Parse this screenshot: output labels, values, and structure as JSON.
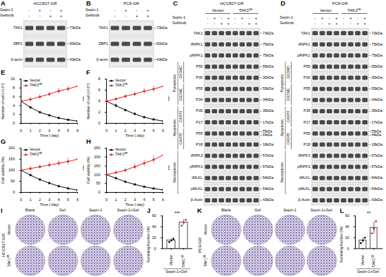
{
  "blots": [
    {
      "panel": "A",
      "cell_line": "HCC827-GR",
      "treatments": [
        {
          "label": "Sepin-1",
          "signs": [
            "-",
            "+",
            "-",
            "+"
          ]
        },
        {
          "label": "Gefitinib",
          "signs": [
            "-",
            "-",
            "+",
            "+"
          ]
        }
      ],
      "rows": [
        {
          "label": "TAK1",
          "mw": [
            "73kDa"
          ]
        },
        {
          "label": "ZBP1",
          "mw": [
            "60kDa"
          ]
        },
        {
          "label": "β-actin",
          "mw": [
            "43kDa"
          ]
        }
      ]
    },
    {
      "panel": "B",
      "cell_line": "PC9-GR",
      "treatments": [
        {
          "label": "Sepin-1",
          "signs": [
            "-",
            "+",
            "-",
            "+"
          ]
        },
        {
          "label": "Gefitinib",
          "signs": [
            "-",
            "-",
            "+",
            "+"
          ]
        }
      ],
      "rows": [
        {
          "label": "TAK1",
          "mw": [
            "73kDa"
          ]
        },
        {
          "label": "ZBP1",
          "mw": [
            "60kDa"
          ]
        },
        {
          "label": "β-actin",
          "mw": [
            "43kDa"
          ]
        }
      ]
    },
    {
      "panel": "C",
      "cell_line": "HCC827-GR",
      "lane_groups": [
        "Vector",
        "TAK1ᴰᴱ"
      ],
      "treatments": [
        {
          "label": "Sepin-1",
          "signs": [
            "-",
            "+",
            "-",
            "+",
            "-",
            "+",
            "-",
            "+"
          ]
        },
        {
          "label": "Gefitinib",
          "signs": [
            "-",
            "-",
            "+",
            "+",
            "-",
            "-",
            "+",
            "+"
          ]
        }
      ],
      "rows": [
        {
          "label": "TAK1",
          "mw": [
            "73kDa"
          ]
        },
        {
          "label": "tRIPK1",
          "mw": [
            "75kDa"
          ]
        },
        {
          "label": "pRIPK1",
          "mw": [
            "75kDa"
          ]
        },
        {
          "category": "Pyroptosis",
          "protein": "GSDMD",
          "label": "P55",
          "mw": [
            "55kDa"
          ]
        },
        {
          "category": "Pyroptosis",
          "protein": "GSDMD",
          "label": "P30",
          "mw": [
            "30kDa"
          ]
        },
        {
          "category": "Pyroptosis",
          "protein": "GSDME",
          "label": "P55",
          "mw": [
            "55kDa"
          ]
        },
        {
          "category": "Pyroptosis",
          "protein": "GSDME",
          "label": "P34",
          "mw": [
            "34kDa"
          ]
        },
        {
          "category": "Apoptosis",
          "protein": "CASP3",
          "label": "P35",
          "mw": [
            "35kDa"
          ]
        },
        {
          "category": "Apoptosis",
          "protein": "CASP3",
          "label": "P17",
          "mw": [
            "17kDa"
          ]
        },
        {
          "category": "Apoptosis",
          "protein": "CASP8",
          "label": "P55",
          "mw": [
            "55kDa",
            "44kDa"
          ]
        },
        {
          "category": "Apoptosis",
          "protein": "CASP8",
          "label": "P18",
          "mw": [
            "18kDa"
          ]
        },
        {
          "category": "Necroptosis",
          "label": "tRIPK3",
          "mw": [
            "57kDa"
          ]
        },
        {
          "category": "Necroptosis",
          "label": "pRIPK3",
          "mw": [
            "57kDa"
          ]
        },
        {
          "category": "Necroptosis",
          "label": "tMLKL",
          "mw": [
            "54kDa"
          ]
        },
        {
          "category": "Necroptosis",
          "label": "pMLKL",
          "mw": [
            "54kDa"
          ]
        },
        {
          "label": "β-Actin",
          "mw": [
            "43kDa"
          ]
        }
      ]
    },
    {
      "panel": "D",
      "cell_line": "PC9-GR",
      "lane_groups": [
        "Vector",
        "TAK1ᴰᴱ"
      ],
      "treatments": [
        {
          "label": "Sepin-1",
          "signs": [
            "-",
            "+",
            "-",
            "+",
            "-",
            "+",
            "-",
            "+"
          ]
        },
        {
          "label": "Gefitinib",
          "signs": [
            "-",
            "-",
            "+",
            "+",
            "-",
            "-",
            "+",
            "+"
          ]
        }
      ],
      "rows": [
        {
          "label": "TAK1",
          "mw": [
            "73kDa"
          ]
        },
        {
          "label": "tRIPK1",
          "mw": [
            "75kDa"
          ]
        },
        {
          "label": "pRIPK1",
          "mw": [
            "75kDa"
          ]
        },
        {
          "category": "Pyroptosis",
          "protein": "GSDMD",
          "label": "P55",
          "mw": [
            "55kDa"
          ]
        },
        {
          "category": "Pyroptosis",
          "protein": "GSDMD",
          "label": "P30",
          "mw": [
            "30kDa"
          ]
        },
        {
          "category": "Pyroptosis",
          "protein": "GSDME",
          "label": "P55",
          "mw": [
            "55kDa"
          ]
        },
        {
          "category": "Pyroptosis",
          "protein": "GSDME",
          "label": "P34",
          "mw": [
            "34kDa"
          ]
        },
        {
          "category": "Apoptosis",
          "protein": "CASP3",
          "label": "P35",
          "mw": [
            "35kDa"
          ]
        },
        {
          "category": "Apoptosis",
          "protein": "CASP3",
          "label": "P17",
          "mw": [
            "17kDa"
          ]
        },
        {
          "category": "Apoptosis",
          "protein": "CASP8",
          "label": "P55",
          "mw": [
            "55kDa",
            "44kDa"
          ]
        },
        {
          "category": "Apoptosis",
          "protein": "CASP8",
          "label": "P18",
          "mw": [
            "18kDa"
          ]
        },
        {
          "category": "Necroptosis",
          "label": "tRIPK3",
          "mw": [
            "57kDa"
          ]
        },
        {
          "category": "Necroptosis",
          "label": "pRIPK3",
          "mw": [
            "57kDa"
          ]
        },
        {
          "category": "Necroptosis",
          "label": "tMLKL",
          "mw": [
            "54kDa"
          ]
        },
        {
          "category": "Necroptosis",
          "label": "pMLKL",
          "mw": [
            "54kDa"
          ]
        },
        {
          "label": "β-Actin",
          "mw": [
            "43kDa"
          ]
        }
      ]
    }
  ],
  "chart_data": [
    {
      "panel": "E",
      "type": "line",
      "x_label": "Time ( day)",
      "y_label": "Number of cell (×10⁴)",
      "x": [
        0,
        1,
        2,
        3,
        4,
        5,
        6
      ],
      "xlim": [
        0,
        6
      ],
      "xticks": [
        0,
        1,
        2,
        3,
        4,
        5,
        6
      ],
      "ylim": [
        0,
        10
      ],
      "yticks": [
        0,
        2,
        4,
        6,
        8,
        10
      ],
      "legend": "top-left",
      "annotations": [
        "***"
      ],
      "series": [
        {
          "name": "Vector",
          "color": "#000000",
          "marker": "square",
          "values": [
            5,
            3.6,
            2.5,
            1.8,
            1.2,
            0.8,
            0.5
          ],
          "errors": [
            0.3,
            0.3,
            0.2,
            0.2,
            0.2,
            0.1,
            0.1
          ]
        },
        {
          "name": "TAK1ᴰᴱ",
          "color": "#e31a1c",
          "marker": "circle",
          "values": [
            5,
            5.4,
            6,
            6.6,
            7.3,
            7.8,
            8.4
          ],
          "errors": [
            0.3,
            0.4,
            0.5,
            0.5,
            0.6,
            0.7,
            0.8
          ]
        }
      ]
    },
    {
      "panel": "F",
      "type": "line",
      "x_label": "Time ( day)",
      "y_label": "Number of cell (×10⁴)",
      "x": [
        0,
        1,
        2,
        3,
        4,
        5,
        6
      ],
      "xlim": [
        0,
        6
      ],
      "xticks": [
        0,
        1,
        2,
        3,
        4,
        5,
        6
      ],
      "ylim": [
        0,
        8
      ],
      "yticks": [
        0,
        2,
        4,
        6,
        8
      ],
      "legend": "top-left",
      "annotations": [
        "***"
      ],
      "series": [
        {
          "name": "Vector",
          "color": "#000000",
          "marker": "square",
          "values": [
            4,
            3.2,
            2.4,
            1.7,
            1.1,
            0.7,
            0.4
          ],
          "errors": [
            0.3,
            0.3,
            0.2,
            0.2,
            0.2,
            0.1,
            0.1
          ]
        },
        {
          "name": "TAK1ᴰᴱ",
          "color": "#e31a1c",
          "marker": "circle",
          "values": [
            4,
            4.4,
            4.9,
            5.3,
            5.8,
            6.2,
            6.7
          ],
          "errors": [
            0.3,
            0.3,
            0.4,
            0.4,
            0.5,
            0.5,
            0.6
          ]
        }
      ]
    },
    {
      "panel": "G",
      "type": "line",
      "x_label": "Time ( day)",
      "y_label": "Cell viability (%)",
      "x": [
        0,
        1,
        2,
        3,
        4,
        5,
        6
      ],
      "xlim": [
        0,
        6
      ],
      "xticks": [
        0,
        1,
        2,
        3,
        4,
        5,
        6
      ],
      "ylim": [
        0,
        200
      ],
      "yticks": [
        0,
        50,
        100,
        150,
        200
      ],
      "legend": "top-left",
      "annotations": [
        "***"
      ],
      "series": [
        {
          "name": "Vector",
          "color": "#000000",
          "marker": "square",
          "values": [
            100,
            78,
            58,
            42,
            28,
            18,
            10
          ],
          "errors": [
            5,
            6,
            5,
            4,
            4,
            3,
            2
          ]
        },
        {
          "name": "TAK1ᴰᴱ",
          "color": "#e31a1c",
          "marker": "circle",
          "values": [
            100,
            108,
            116,
            124,
            132,
            140,
            150
          ],
          "errors": [
            5,
            8,
            10,
            12,
            14,
            16,
            18
          ]
        }
      ]
    },
    {
      "panel": "H",
      "type": "line",
      "x_label": "Time ( day)",
      "y_label": "Cell viability (%)",
      "x": [
        0,
        1,
        2,
        3,
        4,
        5,
        6
      ],
      "xlim": [
        0,
        6
      ],
      "xticks": [
        0,
        1,
        2,
        3,
        4,
        5,
        6
      ],
      "ylim": [
        0,
        250
      ],
      "yticks": [
        0,
        50,
        100,
        150,
        200,
        250
      ],
      "legend": "top-left",
      "annotations": [
        "***"
      ],
      "series": [
        {
          "name": "Vector",
          "color": "#000000",
          "marker": "square",
          "values": [
            100,
            80,
            60,
            45,
            32,
            22,
            14
          ],
          "errors": [
            5,
            6,
            5,
            4,
            4,
            3,
            2
          ]
        },
        {
          "name": "TAK1ᴰᴱ",
          "color": "#e31a1c",
          "marker": "circle",
          "values": [
            100,
            112,
            125,
            145,
            165,
            185,
            210
          ],
          "errors": [
            5,
            10,
            12,
            15,
            18,
            22,
            28
          ]
        }
      ]
    },
    {
      "panel": "J",
      "type": "bar",
      "categories": [
        "Vector",
        "TAK1ᴰᴱ"
      ],
      "values": [
        15,
        48
      ],
      "errors": [
        3,
        5
      ],
      "points": [
        [
          12,
          15,
          18
        ],
        [
          42,
          48,
          53
        ]
      ],
      "colors": [
        "#000000",
        "#e31a1c"
      ],
      "y_label": "Surviving fraction (%)",
      "x_label": "Sepin-1+Gef.",
      "ylim": [
        0,
        60
      ],
      "yticks": [
        0,
        20,
        40,
        60
      ],
      "annotations": [
        "***"
      ]
    },
    {
      "panel": "L",
      "type": "bar",
      "categories": [
        "Vector",
        "TAK1ᴰᴱ"
      ],
      "values": [
        15,
        38
      ],
      "errors": [
        5,
        11
      ],
      "points": [
        [
          10,
          15,
          20
        ],
        [
          28,
          36,
          50
        ]
      ],
      "colors": [
        "#000000",
        "#e31a1c"
      ],
      "y_label": "Surviving fraction (%)",
      "x_label": "Sepin-1+Gef.",
      "ylim": [
        0,
        60
      ],
      "yticks": [
        0,
        20,
        40,
        60
      ],
      "annotations": [
        "**"
      ]
    }
  ],
  "colony_images": [
    {
      "panel": "I",
      "cell_line": "HCC827-GR",
      "columns": [
        "Blank",
        "Gef.",
        "Sepin-1",
        "Sepin-1+Gef."
      ],
      "rows": [
        "Vector",
        "TAK1ᴰᴱ"
      ]
    },
    {
      "panel": "K",
      "cell_line": "PC9-GR",
      "columns": [
        "Blank",
        "Gef.",
        "Sepin-1",
        "Sepin-1+Gef."
      ],
      "rows": [
        "Vector",
        "TAK1ᴰᴱ"
      ]
    }
  ]
}
